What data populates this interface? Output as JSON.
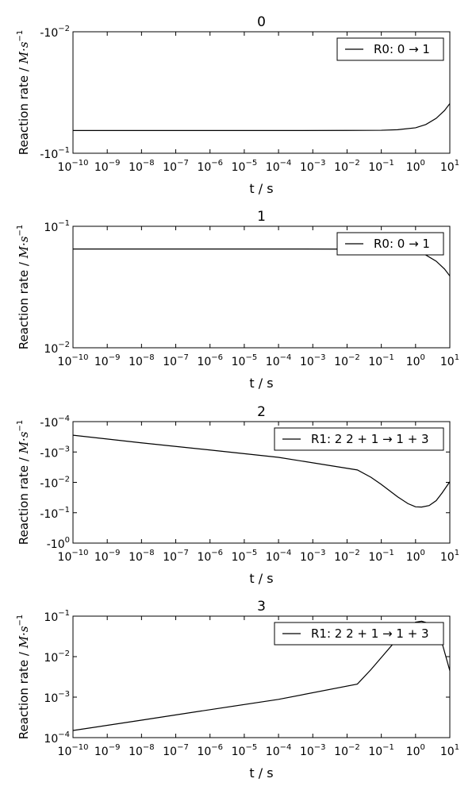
{
  "chart_data": [
    {
      "type": "line",
      "title": "0",
      "xlabel": "t / s",
      "ylabel_text": "Reaction rate / ",
      "ylabel_unit_base": "M·s",
      "ylabel_unit_exp": "−1",
      "xscale": "log",
      "yscale": "log",
      "xlim": [
        1e-10,
        10
      ],
      "ylim": [
        -0.1,
        -0.01
      ],
      "yticks": [
        {
          "base": "-10",
          "exp": "-2"
        },
        {
          "base": "-10",
          "exp": "-1"
        }
      ],
      "legend_loc": "top-right",
      "series": [
        {
          "name": "R0: 0 → 1",
          "x": [
            1e-10,
            1e-08,
            1e-06,
            0.0001,
            0.01,
            0.1,
            0.3,
            1,
            2,
            4,
            7,
            10
          ],
          "y": [
            -0.065,
            -0.065,
            -0.065,
            -0.065,
            -0.0649,
            -0.0647,
            -0.064,
            -0.0617,
            -0.058,
            -0.0516,
            -0.0445,
            -0.039
          ]
        }
      ]
    },
    {
      "type": "line",
      "title": "1",
      "xlabel": "t / s",
      "ylabel_text": "Reaction rate / ",
      "ylabel_unit_base": "M·s",
      "ylabel_unit_exp": "−1",
      "xscale": "log",
      "yscale": "log",
      "xlim": [
        1e-10,
        10
      ],
      "ylim": [
        0.01,
        0.1
      ],
      "yticks": [
        {
          "base": "10",
          "exp": "-1"
        },
        {
          "base": "10",
          "exp": "-2"
        }
      ],
      "legend_loc": "top-right",
      "series": [
        {
          "name": "R0: 0 → 1",
          "x": [
            1e-10,
            1e-08,
            1e-06,
            0.0001,
            0.01,
            0.1,
            0.3,
            1,
            2,
            4,
            7,
            10
          ],
          "y": [
            0.065,
            0.065,
            0.065,
            0.065,
            0.0649,
            0.0647,
            0.064,
            0.0617,
            0.058,
            0.0516,
            0.0445,
            0.039
          ]
        }
      ]
    },
    {
      "type": "line",
      "title": "2",
      "xlabel": "t / s",
      "ylabel_text": "Reaction rate / ",
      "ylabel_unit_base": "M·s",
      "ylabel_unit_exp": "−1",
      "xscale": "log",
      "yscale": "log",
      "xlim": [
        1e-10,
        10
      ],
      "ylim": [
        -1,
        -0.0001
      ],
      "yticks": [
        {
          "base": "-10",
          "exp": "-4"
        },
        {
          "base": "-10",
          "exp": "-3"
        },
        {
          "base": "-10",
          "exp": "-2"
        },
        {
          "base": "-10",
          "exp": "-1"
        },
        {
          "base": "-10",
          "exp": "0"
        }
      ],
      "legend_loc": "top-right",
      "series": [
        {
          "name": "R1: 2 2 + 1 → 1 + 3",
          "x": [
            1e-10,
            1e-08,
            1e-06,
            0.0001,
            0.02,
            0.05,
            0.1,
            0.3,
            0.6,
            1.0,
            1.5,
            2.5,
            4,
            6,
            10
          ],
          "y": [
            -0.00028,
            -0.0005,
            -0.00086,
            -0.0015,
            -0.0039,
            -0.0068,
            -0.0117,
            -0.03,
            -0.05,
            -0.064,
            -0.065,
            -0.058,
            -0.04,
            -0.022,
            -0.0095
          ]
        }
      ]
    },
    {
      "type": "line",
      "title": "3",
      "xlabel": "t / s",
      "ylabel_text": "Reaction rate / ",
      "ylabel_unit_base": "M·s",
      "ylabel_unit_exp": "−1",
      "xscale": "log",
      "yscale": "log",
      "xlim": [
        1e-10,
        10
      ],
      "ylim": [
        0.0001,
        0.1
      ],
      "yticks": [
        {
          "base": "10",
          "exp": "-1"
        },
        {
          "base": "10",
          "exp": "-2"
        },
        {
          "base": "10",
          "exp": "-3"
        },
        {
          "base": "10",
          "exp": "-4"
        }
      ],
      "legend_loc": "top-right",
      "series": [
        {
          "name": "R1: 2 2 + 1 → 1 + 3",
          "x": [
            1e-10,
            1e-08,
            1e-06,
            0.0001,
            0.02,
            0.05,
            0.1,
            0.3,
            0.6,
            1.0,
            1.5,
            2.5,
            4,
            6,
            10
          ],
          "y": [
            0.00015,
            0.00027,
            0.00049,
            0.00088,
            0.0021,
            0.0048,
            0.0095,
            0.028,
            0.053,
            0.071,
            0.075,
            0.066,
            0.044,
            0.021,
            0.0045
          ]
        }
      ]
    }
  ]
}
